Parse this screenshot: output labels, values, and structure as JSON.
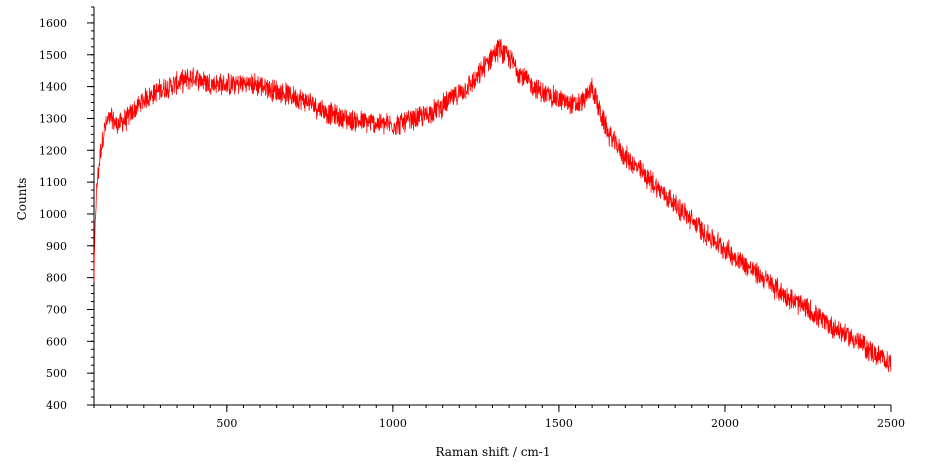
{
  "chart_data": {
    "type": "line",
    "xlabel": "Raman shift / cm-1",
    "ylabel": "Counts",
    "xlim": [
      100,
      2500
    ],
    "ylim": [
      400,
      1650
    ],
    "x_ticks": [
      500,
      1000,
      1500,
      2000,
      2500
    ],
    "y_ticks": [
      400,
      500,
      600,
      700,
      800,
      900,
      1000,
      1100,
      1200,
      1300,
      1400,
      1500,
      1600
    ],
    "x_minor_step": 50,
    "y_minor_step": 25,
    "grid": false,
    "series": [
      {
        "color": "#ff0000",
        "x": [
          100,
          105,
          110,
          120,
          130,
          140,
          150,
          170,
          200,
          250,
          300,
          350,
          400,
          450,
          500,
          550,
          600,
          650,
          700,
          750,
          800,
          850,
          900,
          950,
          1000,
          1050,
          1100,
          1150,
          1200,
          1250,
          1300,
          1320,
          1350,
          1400,
          1450,
          1500,
          1550,
          1580,
          1600,
          1620,
          1650,
          1700,
          1750,
          1800,
          1850,
          1900,
          1950,
          2000,
          2050,
          2100,
          2150,
          2200,
          2250,
          2300,
          2350,
          2400,
          2450,
          2500
        ],
        "y": [
          800,
          1020,
          1100,
          1200,
          1260,
          1290,
          1300,
          1280,
          1300,
          1360,
          1390,
          1410,
          1430,
          1410,
          1405,
          1410,
          1405,
          1385,
          1370,
          1350,
          1320,
          1300,
          1290,
          1285,
          1280,
          1290,
          1310,
          1340,
          1380,
          1420,
          1500,
          1520,
          1490,
          1420,
          1380,
          1360,
          1340,
          1360,
          1400,
          1330,
          1250,
          1180,
          1130,
          1080,
          1030,
          980,
          930,
          890,
          850,
          810,
          770,
          730,
          700,
          660,
          630,
          600,
          560,
          530
        ]
      }
    ]
  }
}
